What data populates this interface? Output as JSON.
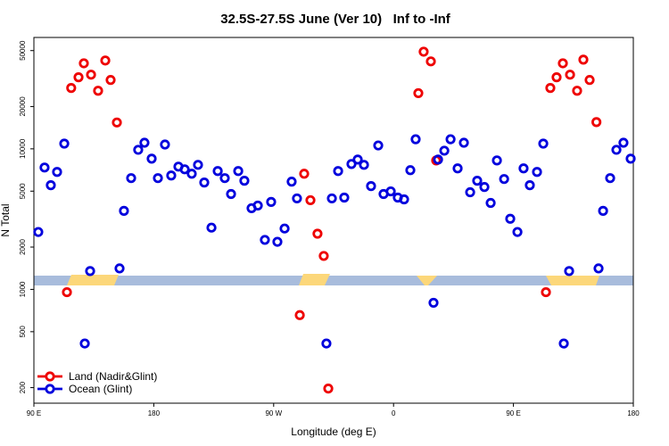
{
  "chart_data": {
    "type": "scatter",
    "title": "32.5S-27.5S June (Ver 10)   Inf to -Inf",
    "x_label": "Longitude (deg E)",
    "y_label": "N Total",
    "xlim": [
      90,
      540
    ],
    "xticks": [
      {
        "value": 90,
        "label": "90 E"
      },
      {
        "value": 180,
        "label": "180"
      },
      {
        "value": 270,
        "label": "90 W"
      },
      {
        "value": 360,
        "label": "0"
      },
      {
        "value": 450,
        "label": "90 E"
      },
      {
        "value": 540,
        "label": "180"
      }
    ],
    "ylim": [
      155,
      62000
    ],
    "yticks": [
      200,
      500,
      1000,
      2000,
      5000,
      10000,
      20000,
      50000
    ],
    "log_y": true,
    "legend": "bottom left",
    "series": [
      {
        "name": "Land (Nadir&Glint)",
        "color": "#ee0000",
        "x": [
          114.8,
          118,
          123.5,
          127.5,
          132.9,
          138.2,
          143.6,
          147.6,
          152.3,
          289.6,
          292.9,
          297.6,
          302.9,
          307.6,
          311,
          378.6,
          382.6,
          388,
          392,
          474.4,
          477.7,
          482.4,
          487.1,
          492.5,
          497.8,
          502.5,
          507.2,
          512.3
        ],
        "values": [
          955,
          27100,
          32300,
          40600,
          33700,
          25900,
          42500,
          30900,
          15400,
          656,
          6650,
          4310,
          2490,
          1730,
          197,
          24900,
          49100,
          41900,
          8270,
          955,
          27100,
          32300,
          40600,
          33700,
          25900,
          43100,
          30900,
          15500
        ]
      },
      {
        "name": "Ocean (Glint)",
        "color": "#0000dd",
        "x": [
          93.3,
          98,
          102.7,
          107.4,
          112.8,
          128.2,
          132.2,
          154.3,
          157.6,
          163,
          168.3,
          173,
          178.4,
          183.1,
          188.4,
          193.1,
          198.5,
          203.2,
          208.5,
          213.2,
          217.9,
          223.3,
          228,
          233.3,
          238,
          243.4,
          248,
          253.4,
          258.1,
          263.4,
          268.1,
          272.8,
          278.2,
          283.5,
          287.5,
          309.6,
          313.7,
          318.4,
          323,
          328.4,
          333.1,
          337.8,
          343.1,
          348.5,
          352.5,
          357.9,
          363.2,
          367.9,
          372.6,
          376.6,
          390,
          393.4,
          398.1,
          402.8,
          408.1,
          412.8,
          417.5,
          422.8,
          428.2,
          432.9,
          437.6,
          443,
          447.6,
          453,
          457.6,
          462.3,
          467.7,
          472.4,
          487.8,
          491.8,
          513.9,
          517.3,
          522.6,
          527.3,
          532.6,
          538
        ],
        "values": [
          2560,
          7360,
          5510,
          6850,
          10890,
          412,
          1350,
          1410,
          3620,
          6190,
          9840,
          11050,
          8510,
          6190,
          10730,
          6460,
          7470,
          7150,
          6650,
          7690,
          5760,
          2750,
          6950,
          6190,
          4770,
          6950,
          5930,
          3780,
          3950,
          2250,
          4190,
          2180,
          2710,
          5840,
          4440,
          412,
          4440,
          6950,
          4500,
          7800,
          8390,
          7690,
          5430,
          10570,
          4770,
          4980,
          4500,
          4370,
          7050,
          11700,
          803,
          8390,
          9700,
          11700,
          7260,
          11050,
          4910,
          5930,
          5350,
          4120,
          8270,
          6100,
          3180,
          2560,
          7260,
          5510,
          6850,
          10890,
          412,
          1350,
          1410,
          3620,
          6190,
          9840,
          11050,
          8510
        ]
      }
    ]
  }
}
